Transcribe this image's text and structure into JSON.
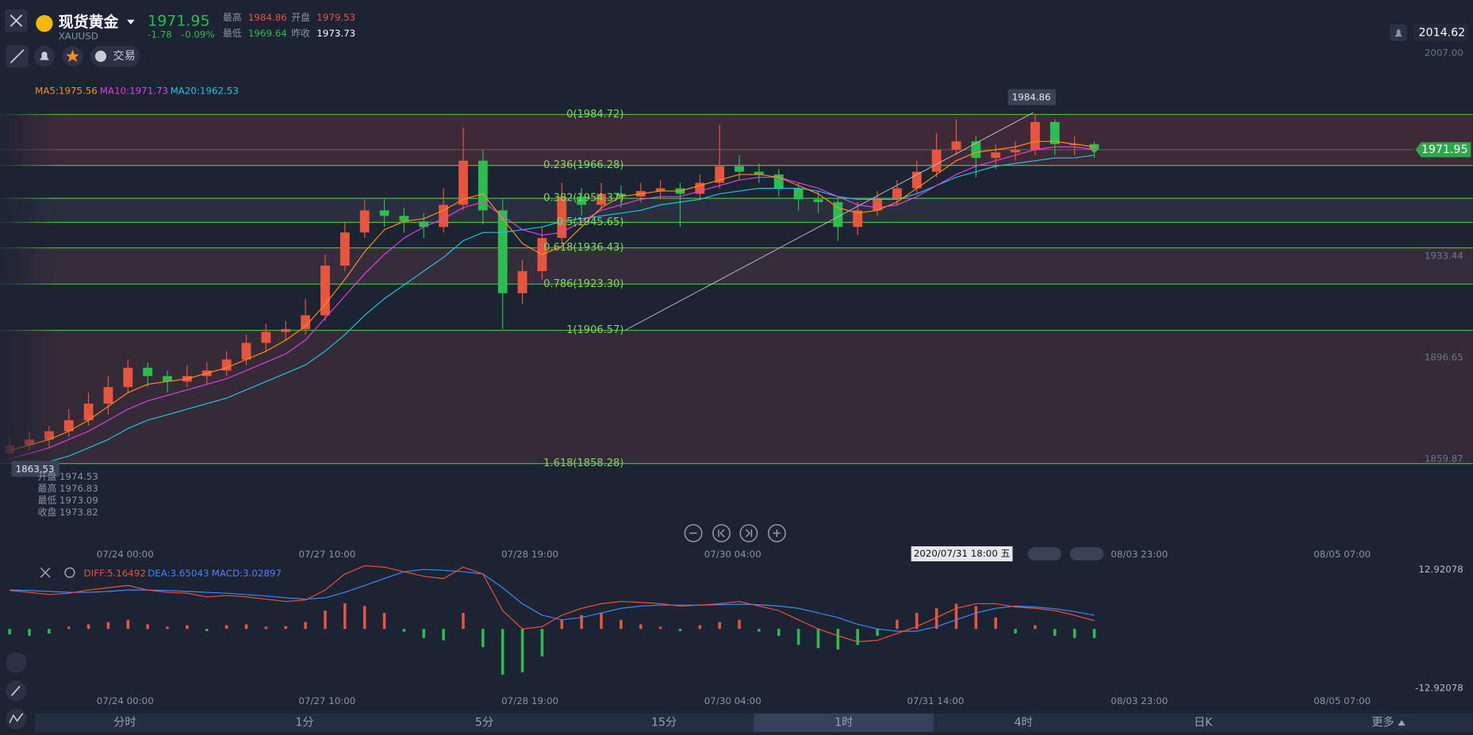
{
  "header": {
    "name": "现货黄金",
    "symbol": "XAUUSD",
    "price": 1971.95,
    "change": -1.78,
    "change_pct": "-0.09%",
    "stats": [
      {
        "label": "最高",
        "value": 1984.86
      },
      {
        "label": "开盘",
        "value": 1979.53
      },
      {
        "label": "最低",
        "value": 1969.64
      },
      {
        "label": "昨收",
        "value": 1973.73
      }
    ],
    "trade": "交易",
    "top_price": 2014.62
  },
  "ma_legend": [
    "MA5:1975.56",
    "MA10:1971.73",
    "MA20:1962.53"
  ],
  "price_chart": {
    "type": "candlestick",
    "ylim": [
      1835.8,
      2009.2
    ],
    "yticks": [
      {
        "value": 2007,
        "label": "2007.00"
      },
      1933.44,
      1896.65,
      1859.87
    ],
    "up_color": "#e8553e",
    "down_color": "#2dbd4e",
    "candles": [
      [
        1862,
        1868,
        1860,
        1865
      ],
      [
        1865,
        1870,
        1863,
        1867
      ],
      [
        1867,
        1872,
        1864,
        1870
      ],
      [
        1870,
        1878,
        1868,
        1874
      ],
      [
        1874,
        1884,
        1872,
        1880
      ],
      [
        1880,
        1890,
        1876,
        1886
      ],
      [
        1886,
        1896,
        1884,
        1893
      ],
      [
        1893,
        1895,
        1886,
        1890
      ],
      [
        1890,
        1892,
        1884,
        1888
      ],
      [
        1888,
        1894,
        1886,
        1890
      ],
      [
        1890,
        1895,
        1887,
        1892
      ],
      [
        1892,
        1899,
        1890,
        1896
      ],
      [
        1896,
        1905,
        1894,
        1902
      ],
      [
        1902,
        1909,
        1899,
        1906
      ],
      [
        1906,
        1910,
        1903,
        1907
      ],
      [
        1907,
        1918,
        1905,
        1912
      ],
      [
        1912,
        1934,
        1910,
        1930
      ],
      [
        1930,
        1946,
        1928,
        1942
      ],
      [
        1942,
        1954,
        1940,
        1950
      ],
      [
        1950,
        1954,
        1944,
        1948
      ],
      [
        1948,
        1951,
        1942,
        1946
      ],
      [
        1946,
        1949,
        1940,
        1944
      ],
      [
        1944,
        1958,
        1942,
        1952
      ],
      [
        1952,
        1980,
        1950,
        1968
      ],
      [
        1968,
        1972,
        1945,
        1950
      ],
      [
        1950,
        1954,
        1907,
        1920
      ],
      [
        1920,
        1932,
        1916,
        1928
      ],
      [
        1928,
        1944,
        1925,
        1940
      ],
      [
        1940,
        1960,
        1938,
        1955
      ],
      [
        1955,
        1958,
        1948,
        1952
      ],
      [
        1952,
        1960,
        1950,
        1956
      ],
      [
        1956,
        1959,
        1951,
        1955
      ],
      [
        1955,
        1960,
        1953,
        1957
      ],
      [
        1957,
        1961,
        1954,
        1958
      ],
      [
        1958,
        1960,
        1944,
        1956
      ],
      [
        1956,
        1963,
        1954,
        1960
      ],
      [
        1960,
        1981,
        1958,
        1966
      ],
      [
        1966,
        1970,
        1961,
        1964
      ],
      [
        1964,
        1967,
        1960,
        1963
      ],
      [
        1963,
        1965,
        1955,
        1958
      ],
      [
        1958,
        1960,
        1950,
        1954
      ],
      [
        1954,
        1957,
        1949,
        1953
      ],
      [
        1953,
        1955,
        1939,
        1944
      ],
      [
        1944,
        1953,
        1941,
        1950
      ],
      [
        1950,
        1957,
        1948,
        1954
      ],
      [
        1954,
        1961,
        1952,
        1958
      ],
      [
        1958,
        1968,
        1956,
        1964
      ],
      [
        1964,
        1978,
        1962,
        1972
      ],
      [
        1972,
        1983,
        1970,
        1975
      ],
      [
        1975,
        1977,
        1962,
        1969
      ],
      [
        1969,
        1974,
        1965,
        1971
      ],
      [
        1971,
        1975,
        1968,
        1972
      ],
      [
        1972,
        1985,
        1970,
        1982
      ],
      [
        1982,
        1983,
        1970,
        1974
      ],
      [
        1974,
        1977,
        1970,
        1974
      ],
      [
        1974,
        1975,
        1969,
        1972
      ]
    ],
    "ma5": {
      "color": "#ff8c1a",
      "values": [
        1863,
        1865,
        1867,
        1870,
        1874,
        1879,
        1884,
        1887,
        1888,
        1889,
        1891,
        1893,
        1896,
        1899,
        1903,
        1908,
        1916,
        1925,
        1935,
        1943,
        1946,
        1947,
        1950,
        1954,
        1956,
        1947,
        1938,
        1934,
        1937,
        1944,
        1951,
        1955,
        1956,
        1957,
        1957,
        1959,
        1961,
        1963,
        1963,
        1962,
        1959,
        1956,
        1951,
        1949,
        1950,
        1953,
        1958,
        1963,
        1968,
        1971,
        1972,
        1973,
        1975,
        1975,
        1974,
        1973
      ]
    },
    "ma10": {
      "color": "#e040e0",
      "values": [
        1860,
        1862,
        1864,
        1867,
        1870,
        1874,
        1878,
        1881,
        1883,
        1885,
        1887,
        1889,
        1892,
        1895,
        1898,
        1903,
        1911,
        1919,
        1927,
        1934,
        1940,
        1944,
        1947,
        1951,
        1953,
        1948,
        1943,
        1941,
        1942,
        1946,
        1950,
        1952,
        1954,
        1955,
        1955,
        1957,
        1959,
        1961,
        1962,
        1962,
        1960,
        1958,
        1955,
        1952,
        1951,
        1952,
        1955,
        1959,
        1963,
        1966,
        1968,
        1970,
        1972,
        1973,
        1973,
        1972
      ]
    },
    "ma20": {
      "color": "#20c5e0",
      "values": [
        1855,
        1857,
        1859,
        1861,
        1864,
        1867,
        1871,
        1874,
        1876,
        1878,
        1880,
        1882,
        1885,
        1888,
        1891,
        1894,
        1899,
        1905,
        1912,
        1918,
        1923,
        1928,
        1933,
        1939,
        1942,
        1942,
        1943,
        1944,
        1946,
        1947,
        1948,
        1949,
        1950,
        1952,
        1953,
        1954,
        1956,
        1957,
        1958,
        1958,
        1958,
        1957,
        1955,
        1954,
        1954,
        1954,
        1956,
        1959,
        1962,
        1964,
        1966,
        1967,
        1968,
        1969,
        1969,
        1970
      ]
    },
    "fib_levels": [
      {
        "label": "0(1984.72)",
        "value": 1984.72
      },
      {
        "label": "0.236(1966.28)",
        "value": 1966.28
      },
      {
        "label": "0.382(1954.37)",
        "value": 1954.37
      },
      {
        "label": "0.5(1945.65)",
        "value": 1945.65
      },
      {
        "label": "0.618(1936.43)",
        "value": 1936.43
      },
      {
        "label": "0.786(1923.30)",
        "value": 1923.3
      },
      {
        "label": "1(1906.57)",
        "value": 1906.57
      },
      {
        "label": "1.618(1858.28)",
        "value": 1858.28
      }
    ],
    "current_price": 1971.95,
    "high_label": 1984.86,
    "low_label": 1863.53
  },
  "info_box": [
    {
      "label": "开盘",
      "value": 1974.53
    },
    {
      "label": "最高",
      "value": 1976.83
    },
    {
      "label": "最低",
      "value": 1973.09
    },
    {
      "label": "收盘",
      "value": 1973.82
    }
  ],
  "time_axis": [
    "07/24 00:00",
    "07/27 10:00",
    "07/28 19:00",
    "07/30 04:00",
    "08/03 23:00",
    "08/05 07:00"
  ],
  "crosshair_time": "2020/07/31 18:00 五",
  "macd": {
    "type": "macd",
    "legend": [
      "DIFF:5.16492",
      "DEA:3.65043",
      "MACD:3.02897"
    ],
    "ylim": [
      -12.92078,
      12.92078
    ],
    "yticks": [
      12.92078,
      -12.92078
    ],
    "diff": {
      "color": "#f0503a",
      "values": [
        8.4,
        8.0,
        7.5,
        7.8,
        8.5,
        9.0,
        9.5,
        8.5,
        8.0,
        7.8,
        7.0,
        7.3,
        7.0,
        6.5,
        6.0,
        6.3,
        8.5,
        12.0,
        13.8,
        13.5,
        12.5,
        11.5,
        11.0,
        13.5,
        12.0,
        4.0,
        0.0,
        0.5,
        3.0,
        4.5,
        5.5,
        6.0,
        5.8,
        5.5,
        5.0,
        5.2,
        5.5,
        6.0,
        5.0,
        4.0,
        2.0,
        0.0,
        -1.5,
        -2.8,
        -2.5,
        -1.0,
        0.5,
        2.5,
        4.5,
        5.5,
        5.5,
        4.8,
        4.5,
        4.0,
        3.0,
        1.8
      ]
    },
    "dea": {
      "color": "#3d8af7",
      "values": [
        8.5,
        8.4,
        8.2,
        8.0,
        8.0,
        8.2,
        8.5,
        8.5,
        8.4,
        8.2,
        8.0,
        7.8,
        7.5,
        7.2,
        6.8,
        6.5,
        6.8,
        8.0,
        9.5,
        11.0,
        12.5,
        13.0,
        12.8,
        12.5,
        12.0,
        9.0,
        5.5,
        3.0,
        2.0,
        2.5,
        3.5,
        4.5,
        5.0,
        5.2,
        5.2,
        5.2,
        5.3,
        5.4,
        5.3,
        5.0,
        4.5,
        3.5,
        2.5,
        1.0,
        0.0,
        -0.5,
        -0.5,
        0.5,
        2.0,
        3.5,
        4.5,
        5.0,
        4.8,
        4.4,
        3.8,
        3.0
      ]
    },
    "hist": [
      -1.2,
      -1.5,
      -1.0,
      0.5,
      1.0,
      1.5,
      2.0,
      1.0,
      0.5,
      0.8,
      -0.5,
      0.8,
      1.0,
      0.5,
      0.6,
      1.5,
      4.0,
      5.6,
      5.0,
      3.5,
      -0.6,
      -2.0,
      -2.5,
      3.5,
      -4.0,
      -10.0,
      -9.5,
      -6.0,
      2.0,
      3.0,
      3.5,
      2.0,
      1.0,
      0.5,
      -0.5,
      0.8,
      1.5,
      2.0,
      -0.6,
      -1.5,
      -3.5,
      -4.2,
      -4.5,
      -3.5,
      -1.5,
      2.0,
      3.5,
      4.5,
      5.5,
      5.0,
      2.5,
      -1.0,
      0.8,
      -1.5,
      -2.0,
      -2.0
    ]
  },
  "macd_time_axis": [
    "07/24 00:00",
    "07/27 10:00",
    "07/28 19:00",
    "07/30 04:00",
    "07/31 14:00",
    "08/03 23:00",
    "08/05 07:00"
  ],
  "tabs": [
    "分时",
    "1分",
    "5分",
    "15分",
    "1时",
    "4时",
    "日K",
    "更多"
  ]
}
